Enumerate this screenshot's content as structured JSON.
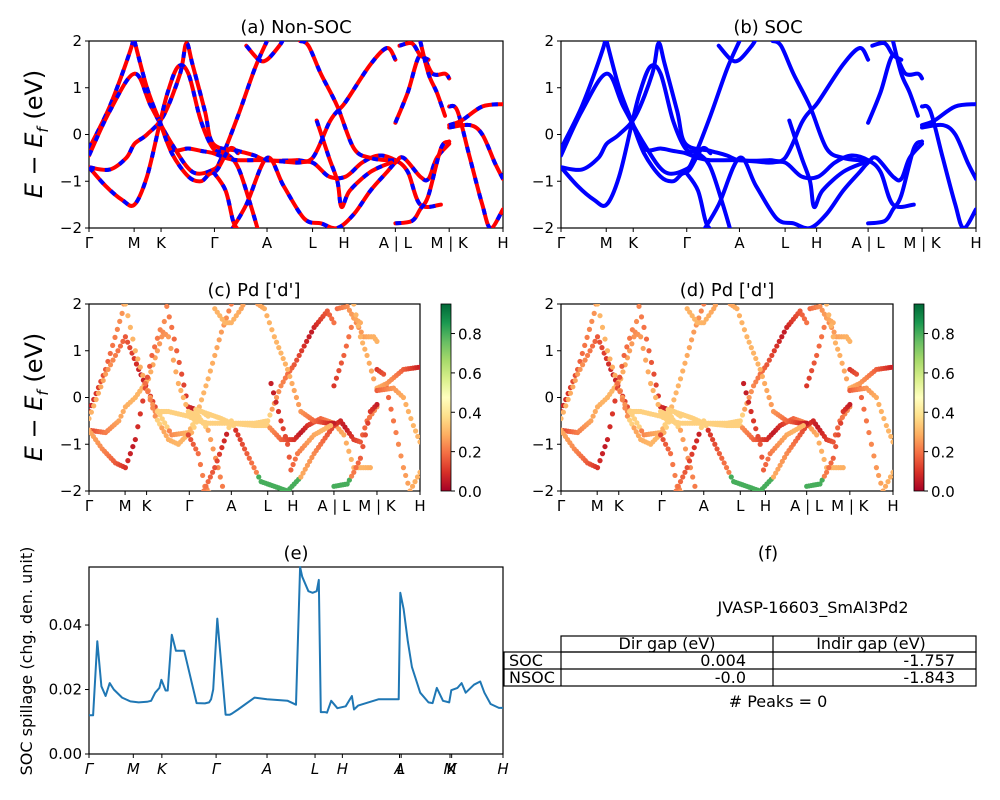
{
  "chart_data": [
    {
      "id": "a",
      "type": "line",
      "title": "(a) Non-SOC",
      "ylabel": "E − E_f (eV)",
      "ylim": [
        -2,
        2
      ],
      "yticks": [
        "−2",
        "−1",
        "0",
        "1",
        "2"
      ],
      "ytick_values": [
        -2,
        -1,
        0,
        1,
        2
      ],
      "xticks": [
        "Γ",
        "M",
        "K",
        "Γ",
        "A",
        "L",
        "H",
        "A | L",
        "M | K",
        "H"
      ],
      "xtick_values": [
        0,
        0.109,
        0.174,
        0.303,
        0.43,
        0.54,
        0.616,
        0.74,
        0.87,
        1.0
      ],
      "series_style": "red-blue-dashed",
      "colors": {
        "line": "#ff0000",
        "dash": "#0000ff"
      }
    },
    {
      "id": "b",
      "type": "line",
      "title": "(b) SOC",
      "ylim": [
        -2,
        2
      ],
      "yticks": [
        "−2",
        "−1",
        "0",
        "1",
        "2"
      ],
      "ytick_values": [
        -2,
        -1,
        0,
        1,
        2
      ],
      "xticks": [
        "Γ",
        "M",
        "K",
        "Γ",
        "A",
        "L",
        "H",
        "A | L",
        "M | K",
        "H"
      ],
      "xtick_values": [
        0,
        0.109,
        0.174,
        0.303,
        0.43,
        0.54,
        0.616,
        0.74,
        0.87,
        1.0
      ],
      "colors": {
        "line": "#0000ff"
      }
    },
    {
      "id": "c",
      "type": "scatter",
      "title": "(c)  Pd ['d']",
      "ylabel": "E − E_f (eV)",
      "ylim": [
        -2,
        2
      ],
      "yticks": [
        "−2",
        "−1",
        "0",
        "1",
        "2"
      ],
      "ytick_values": [
        -2,
        -1,
        0,
        1,
        2
      ],
      "xticks": [
        "Γ",
        "M",
        "K",
        "Γ",
        "A",
        "L",
        "H",
        "A | L",
        "M | K",
        "H"
      ],
      "xtick_values": [
        0,
        0.109,
        0.174,
        0.303,
        0.43,
        0.54,
        0.616,
        0.74,
        0.87,
        1.0
      ],
      "colorbar": {
        "colormap": "RdYlGn",
        "range": [
          0,
          0.95
        ],
        "ticks": [
          "0.0",
          "0.2",
          "0.4",
          "0.6",
          "0.8"
        ],
        "tick_values": [
          0,
          0.2,
          0.4,
          0.6,
          0.8
        ]
      }
    },
    {
      "id": "d",
      "type": "scatter",
      "title": "(d) Pd ['d']",
      "ylim": [
        -2,
        2
      ],
      "yticks": [
        "−2",
        "−1",
        "0",
        "1",
        "2"
      ],
      "ytick_values": [
        -2,
        -1,
        0,
        1,
        2
      ],
      "xticks": [
        "Γ",
        "M",
        "K",
        "Γ",
        "A",
        "L",
        "H",
        "A | L",
        "M | K",
        "H"
      ],
      "xtick_values": [
        0,
        0.109,
        0.174,
        0.303,
        0.43,
        0.54,
        0.616,
        0.74,
        0.87,
        1.0
      ],
      "colorbar": {
        "colormap": "RdYlGn",
        "range": [
          0,
          0.95
        ],
        "ticks": [
          "0.0",
          "0.2",
          "0.4",
          "0.6",
          "0.8"
        ],
        "tick_values": [
          0,
          0.2,
          0.4,
          0.6,
          0.8
        ]
      }
    },
    {
      "id": "e",
      "type": "line",
      "title": "(e)",
      "ylabel": "SOC spillage (chg. den. unit)",
      "ylim": [
        0,
        0.058
      ],
      "yticks": [
        "0.00",
        "0.02",
        "0.04"
      ],
      "ytick_values": [
        0,
        0.02,
        0.04
      ],
      "xticks": [
        "Γ",
        "M",
        "K",
        "Γ",
        "A",
        "L",
        "H",
        "A",
        "L",
        "M",
        "K",
        "H"
      ],
      "xtick_values": [
        0,
        0.107,
        0.176,
        0.307,
        0.43,
        0.546,
        0.612,
        0.75,
        0.754,
        0.872,
        0.876,
        1.0
      ],
      "color": "#1f77b4",
      "x": [
        0,
        0.01,
        0.02,
        0.03,
        0.04,
        0.05,
        0.06,
        0.08,
        0.1,
        0.12,
        0.14,
        0.15,
        0.16,
        0.17,
        0.175,
        0.185,
        0.19,
        0.2,
        0.21,
        0.23,
        0.26,
        0.28,
        0.29,
        0.295,
        0.3,
        0.31,
        0.33,
        0.34,
        0.345,
        0.36,
        0.4,
        0.43,
        0.48,
        0.5,
        0.51,
        0.515,
        0.53,
        0.54,
        0.55,
        0.555,
        0.56,
        0.57,
        0.575,
        0.585,
        0.6,
        0.62,
        0.635,
        0.64,
        0.65,
        0.7,
        0.748,
        0.752,
        0.76,
        0.77,
        0.78,
        0.8,
        0.82,
        0.83,
        0.84,
        0.855,
        0.87,
        0.875,
        0.89,
        0.9,
        0.91,
        0.93,
        0.945,
        0.955,
        0.97,
        0.99,
        1.0
      ],
      "values": [
        0.012,
        0.012,
        0.035,
        0.021,
        0.018,
        0.022,
        0.02,
        0.0175,
        0.0163,
        0.016,
        0.0162,
        0.0165,
        0.019,
        0.0205,
        0.023,
        0.0197,
        0.0197,
        0.037,
        0.032,
        0.032,
        0.0158,
        0.0157,
        0.016,
        0.017,
        0.02,
        0.042,
        0.0122,
        0.0122,
        0.0125,
        0.0138,
        0.0175,
        0.017,
        0.0165,
        0.0153,
        0.058,
        0.055,
        0.0505,
        0.05,
        0.0505,
        0.054,
        0.013,
        0.013,
        0.0128,
        0.0165,
        0.0142,
        0.0148,
        0.018,
        0.0138,
        0.015,
        0.017,
        0.017,
        0.05,
        0.045,
        0.035,
        0.027,
        0.019,
        0.016,
        0.0158,
        0.0205,
        0.0165,
        0.016,
        0.0198,
        0.0205,
        0.022,
        0.019,
        0.0215,
        0.0225,
        0.019,
        0.0155,
        0.0143,
        0.0143
      ]
    },
    {
      "id": "f",
      "type": "table",
      "title": "(f)",
      "subtitle": "JVASP-16603_SmAl3Pd2",
      "columns": [
        "",
        "Dir gap (eV)",
        "Indir gap (eV)"
      ],
      "rows": [
        {
          "label": "SOC",
          "dir_gap": "0.004",
          "indir_gap": "-1.757"
        },
        {
          "label": "NSOC",
          "dir_gap": "-0.0",
          "indir_gap": "-1.843"
        }
      ],
      "footer": "# Peaks = 0"
    }
  ],
  "bands": [
    [
      [
        0,
        -0.3
      ],
      [
        0.05,
        0.6
      ],
      [
        0.1,
        1.8
      ],
      [
        0.11,
        2.2
      ]
    ],
    [
      [
        0,
        -0.45
      ],
      [
        0.05,
        0.5
      ],
      [
        0.11,
        1.3
      ],
      [
        0.15,
        0.6
      ],
      [
        0.2,
        -0.2
      ],
      [
        0.25,
        -0.8
      ],
      [
        0.3,
        -0.75
      ],
      [
        0.32,
        -0.5
      ],
      [
        0.36,
        0.4
      ],
      [
        0.4,
        1.4
      ],
      [
        0.43,
        2.0
      ]
    ],
    [
      [
        0,
        -0.7
      ],
      [
        0.05,
        -0.75
      ],
      [
        0.09,
        -0.5
      ],
      [
        0.11,
        -0.2
      ],
      [
        0.14,
        0.0
      ],
      [
        0.18,
        0.4
      ],
      [
        0.22,
        1.3
      ],
      [
        0.235,
        1.95
      ],
      [
        0.25,
        1.5
      ],
      [
        0.28,
        0.5
      ],
      [
        0.3,
        -0.2
      ],
      [
        0.36,
        -0.35
      ],
      [
        0.4,
        -0.45
      ],
      [
        0.43,
        -0.55
      ],
      [
        0.5,
        -0.55
      ],
      [
        0.54,
        -0.5
      ],
      [
        0.58,
        0.25
      ],
      [
        0.6,
        0.5
      ],
      [
        0.62,
        0.7
      ],
      [
        0.68,
        1.5
      ],
      [
        0.72,
        1.85
      ],
      [
        0.74,
        1.6
      ]
    ],
    [
      [
        0,
        -0.7
      ],
      [
        0.04,
        -1.1
      ],
      [
        0.08,
        -1.4
      ],
      [
        0.11,
        -1.5
      ],
      [
        0.14,
        -0.9
      ],
      [
        0.17,
        0.2
      ],
      [
        0.19,
        0.9
      ],
      [
        0.215,
        1.45
      ],
      [
        0.24,
        1.3
      ],
      [
        0.27,
        0.3
      ],
      [
        0.3,
        -0.3
      ],
      [
        0.33,
        -0.4
      ],
      [
        0.36,
        -0.7
      ],
      [
        0.39,
        -1.5
      ],
      [
        0.41,
        -2.1
      ]
    ],
    [
      [
        0.11,
        2.0
      ],
      [
        0.14,
        1.0
      ],
      [
        0.17,
        0.3
      ],
      [
        0.2,
        -0.3
      ],
      [
        0.24,
        -0.3
      ],
      [
        0.27,
        -0.35
      ],
      [
        0.3,
        -0.4
      ],
      [
        0.33,
        -0.5
      ],
      [
        0.36,
        -0.55
      ],
      [
        0.43,
        -0.55
      ],
      [
        0.5,
        -0.6
      ],
      [
        0.54,
        -0.6
      ],
      [
        0.58,
        -0.9
      ],
      [
        0.62,
        -0.9
      ],
      [
        0.66,
        -0.6
      ],
      [
        0.7,
        -0.45
      ],
      [
        0.74,
        -0.55
      ],
      [
        0.77,
        -0.8
      ],
      [
        0.8,
        -1.5
      ],
      [
        0.85,
        -1.5
      ]
    ],
    [
      [
        0.17,
        0.3
      ],
      [
        0.2,
        -0.4
      ],
      [
        0.24,
        -0.9
      ],
      [
        0.27,
        -1.0
      ],
      [
        0.29,
        -0.85
      ],
      [
        0.31,
        -0.75
      ],
      [
        0.34,
        -0.3
      ],
      [
        0.36,
        -0.4
      ]
    ],
    [
      [
        0.3,
        -0.8
      ],
      [
        0.33,
        -1.2
      ],
      [
        0.35,
        -1.9
      ],
      [
        0.37,
        -2.1
      ]
    ],
    [
      [
        0.34,
        -2.1
      ],
      [
        0.38,
        -1.5
      ],
      [
        0.43,
        -0.5
      ],
      [
        0.47,
        -1.1
      ],
      [
        0.52,
        -1.8
      ],
      [
        0.56,
        -1.9
      ],
      [
        0.6,
        -2.0
      ],
      [
        0.64,
        -1.7
      ],
      [
        0.68,
        -1.2
      ],
      [
        0.72,
        -0.8
      ],
      [
        0.74,
        -0.6
      ],
      [
        0.76,
        -0.5
      ],
      [
        0.8,
        -0.9
      ],
      [
        0.82,
        -0.95
      ],
      [
        0.84,
        -0.5
      ],
      [
        0.87,
        -0.2
      ]
    ],
    [
      [
        0.38,
        1.9
      ],
      [
        0.41,
        1.6
      ],
      [
        0.43,
        1.6
      ],
      [
        0.46,
        1.9
      ],
      [
        0.47,
        2.05
      ]
    ],
    [
      [
        0.51,
        2.0
      ],
      [
        0.53,
        1.9
      ],
      [
        0.56,
        1.3
      ],
      [
        0.6,
        0.6
      ],
      [
        0.64,
        -0.3
      ],
      [
        0.68,
        -0.5
      ],
      [
        0.72,
        -0.55
      ],
      [
        0.74,
        -0.55
      ]
    ],
    [
      [
        0.55,
        0.3
      ],
      [
        0.58,
        -0.5
      ],
      [
        0.6,
        -1.0
      ],
      [
        0.61,
        -1.55
      ],
      [
        0.63,
        -1.2
      ],
      [
        0.68,
        -0.8
      ],
      [
        0.73,
        -0.6
      ]
    ],
    [
      [
        0.74,
        0.25
      ],
      [
        0.77,
        0.9
      ],
      [
        0.8,
        1.7
      ],
      [
        0.83,
        1.3
      ],
      [
        0.86,
        1.3
      ],
      [
        0.87,
        1.2
      ]
    ],
    [
      [
        0.74,
        -1.9
      ],
      [
        0.78,
        -1.85
      ],
      [
        0.8,
        -1.6
      ],
      [
        0.82,
        -1.3
      ],
      [
        0.85,
        -0.3
      ],
      [
        0.87,
        -0.15
      ]
    ],
    [
      [
        0.75,
        1.9
      ],
      [
        0.78,
        1.95
      ],
      [
        0.8,
        1.7
      ],
      [
        0.82,
        1.6
      ]
    ],
    [
      [
        0.87,
        0.6
      ],
      [
        0.89,
        0.5
      ],
      [
        0.92,
        -0.5
      ],
      [
        0.95,
        -1.5
      ],
      [
        0.97,
        -2.0
      ],
      [
        1.0,
        -1.6
      ]
    ],
    [
      [
        0.87,
        0.2
      ],
      [
        0.9,
        0.3
      ],
      [
        0.95,
        0.6
      ],
      [
        1.0,
        0.65
      ]
    ],
    [
      [
        0.87,
        0.15
      ],
      [
        0.92,
        0.2
      ],
      [
        0.95,
        0.0
      ],
      [
        0.98,
        -0.6
      ],
      [
        1.0,
        -0.95
      ]
    ],
    [
      [
        0.8,
        2.0
      ],
      [
        0.82,
        1.3
      ],
      [
        0.84,
        0.9
      ],
      [
        0.86,
        0.4
      ]
    ]
  ]
}
